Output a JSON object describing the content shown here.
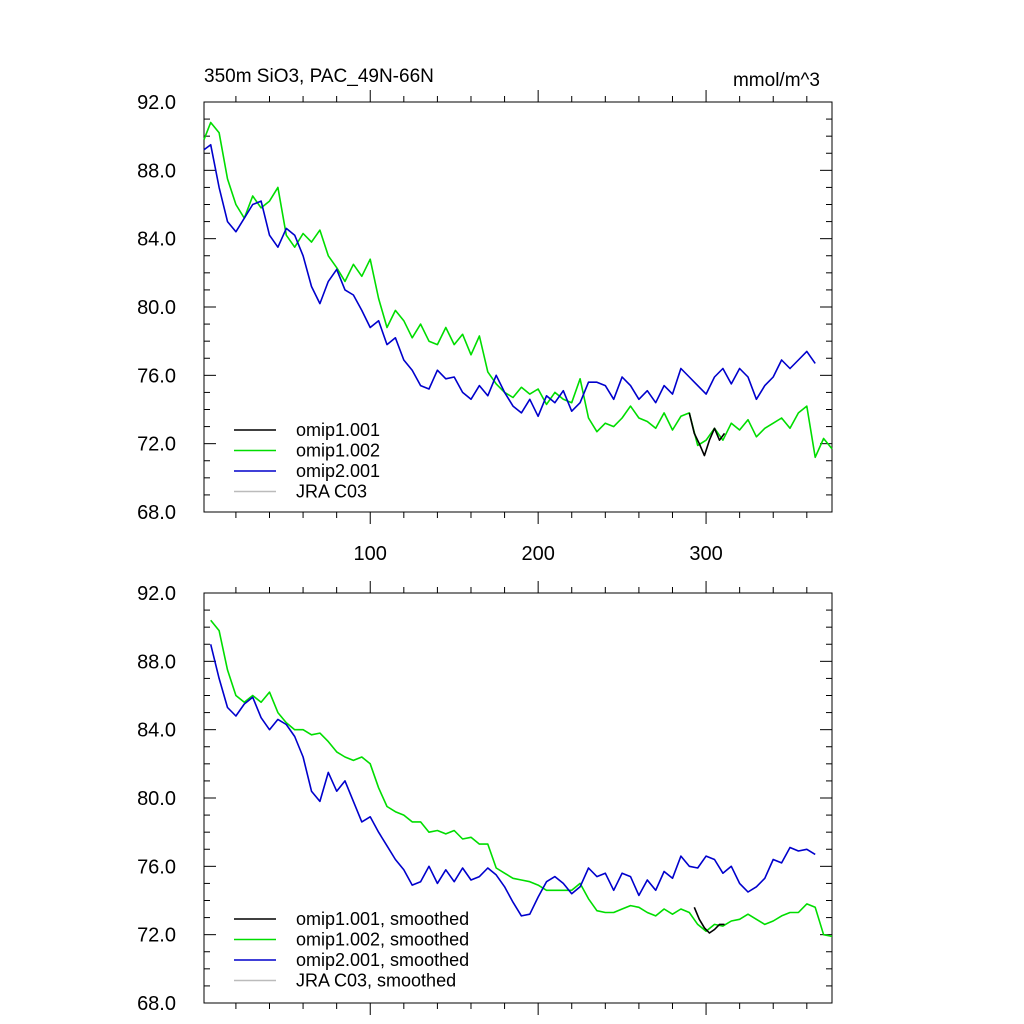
{
  "chart_data": [
    {
      "type": "line",
      "title": "350m SiO3, PAC_49N-66N",
      "units": "mmol/m^3",
      "xlabel": "",
      "ylabel": "",
      "xlim": [
        1,
        375
      ],
      "ylim": [
        68,
        92
      ],
      "ytick_labels": [
        "68.0",
        "72.0",
        "76.0",
        "80.0",
        "84.0",
        "88.0",
        "92.0"
      ],
      "xtick_labels": [
        "100",
        "200",
        "300"
      ],
      "legend": [
        "omip1.001",
        "omip1.002",
        "omip2.001",
        "JRA C03"
      ],
      "legend_position": "bottom-left",
      "smoothed": false,
      "series": [
        {
          "name": "omip1.002",
          "color": "#00dd00",
          "x": [
            1,
            5,
            10,
            15,
            20,
            25,
            30,
            35,
            40,
            45,
            50,
            55,
            60,
            65,
            70,
            75,
            80,
            85,
            90,
            95,
            100,
            105,
            110,
            115,
            120,
            125,
            130,
            135,
            140,
            145,
            150,
            155,
            160,
            165,
            170,
            175,
            180,
            185,
            190,
            195,
            200,
            205,
            210,
            215,
            220,
            225,
            230,
            235,
            240,
            245,
            250,
            255,
            260,
            265,
            270,
            275,
            280,
            285,
            290,
            295,
            300,
            305,
            310,
            315,
            320,
            325,
            330,
            335,
            340,
            345,
            350,
            355,
            360,
            365,
            370,
            375
          ],
          "y": [
            89.8,
            90.8,
            90.2,
            87.5,
            86.0,
            85.2,
            86.5,
            85.8,
            86.2,
            87.0,
            84.2,
            83.5,
            84.3,
            83.8,
            84.5,
            83.0,
            82.3,
            81.5,
            82.5,
            81.8,
            82.8,
            80.5,
            78.8,
            79.8,
            79.2,
            78.2,
            79.0,
            78.0,
            77.8,
            78.8,
            77.8,
            78.4,
            77.2,
            78.3,
            76.2,
            75.5,
            75.0,
            74.7,
            75.3,
            74.9,
            75.2,
            74.3,
            75.0,
            74.6,
            74.4,
            75.8,
            73.5,
            72.7,
            73.2,
            73.0,
            73.5,
            74.2,
            73.5,
            73.3,
            72.9,
            73.8,
            72.8,
            73.6,
            73.8,
            71.9,
            72.2,
            72.9,
            72.2,
            73.2,
            72.8,
            73.4,
            72.4,
            72.9,
            73.2,
            73.5,
            72.9,
            73.8,
            74.2,
            71.2,
            72.3,
            71.7
          ]
        },
        {
          "name": "omip1.001",
          "color": "#000000",
          "x": [
            290,
            293,
            296,
            299,
            302,
            305,
            308,
            311
          ],
          "y": [
            73.8,
            72.6,
            72.0,
            71.3,
            72.2,
            72.9,
            72.2,
            72.6
          ]
        },
        {
          "name": "omip2.001",
          "color": "#0000cc",
          "x": [
            1,
            5,
            10,
            15,
            20,
            25,
            30,
            35,
            40,
            45,
            50,
            55,
            60,
            65,
            70,
            75,
            80,
            85,
            90,
            95,
            100,
            105,
            110,
            115,
            120,
            125,
            130,
            135,
            140,
            145,
            150,
            155,
            160,
            165,
            170,
            175,
            180,
            185,
            190,
            195,
            200,
            205,
            210,
            215,
            220,
            225,
            230,
            235,
            240,
            245,
            250,
            255,
            260,
            265,
            270,
            275,
            280,
            285,
            290,
            295,
            300,
            305,
            310,
            315,
            320,
            325,
            330,
            335,
            340,
            345,
            350,
            355,
            360,
            365
          ],
          "y": [
            89.2,
            89.5,
            87.0,
            85.0,
            84.4,
            85.2,
            86.0,
            86.2,
            84.2,
            83.5,
            84.6,
            84.2,
            83.0,
            81.2,
            80.2,
            81.5,
            82.2,
            81.0,
            80.7,
            79.8,
            78.8,
            79.2,
            77.8,
            78.2,
            76.9,
            76.3,
            75.4,
            75.2,
            76.3,
            75.8,
            75.9,
            75.0,
            74.6,
            75.4,
            74.8,
            76.0,
            75.0,
            74.2,
            73.8,
            74.6,
            73.6,
            74.8,
            74.4,
            75.1,
            73.9,
            74.4,
            75.6,
            75.6,
            75.4,
            74.6,
            75.9,
            75.4,
            74.6,
            75.1,
            74.4,
            75.4,
            74.9,
            76.4,
            75.9,
            75.4,
            74.9,
            75.9,
            76.4,
            75.5,
            76.4,
            75.9,
            74.6,
            75.4,
            75.9,
            76.9,
            76.4,
            76.9,
            77.4,
            76.7
          ]
        }
      ]
    },
    {
      "type": "line",
      "title": "",
      "units": "",
      "xlabel": "",
      "ylabel": "",
      "xlim": [
        1,
        375
      ],
      "ylim": [
        68,
        92
      ],
      "ytick_labels": [
        "68.0",
        "72.0",
        "76.0",
        "80.0",
        "84.0",
        "88.0",
        "92.0"
      ],
      "xtick_labels": [],
      "legend": [
        "omip1.001, smoothed",
        "omip1.002, smoothed",
        "omip2.001, smoothed",
        "JRA C03, smoothed"
      ],
      "legend_position": "bottom-left",
      "smoothed": true,
      "series": [
        {
          "name": "omip1.002, smoothed",
          "color": "#00dd00",
          "x": [
            5,
            10,
            15,
            20,
            25,
            30,
            35,
            40,
            45,
            50,
            55,
            60,
            65,
            70,
            75,
            80,
            85,
            90,
            95,
            100,
            105,
            110,
            115,
            120,
            125,
            130,
            135,
            140,
            145,
            150,
            155,
            160,
            165,
            170,
            175,
            180,
            185,
            190,
            195,
            200,
            205,
            210,
            215,
            220,
            225,
            230,
            235,
            240,
            245,
            250,
            255,
            260,
            265,
            270,
            275,
            280,
            285,
            290,
            295,
            300,
            305,
            310,
            315,
            320,
            325,
            330,
            335,
            340,
            345,
            350,
            355,
            360,
            365,
            370,
            375
          ],
          "y": [
            90.4,
            89.8,
            87.5,
            86.0,
            85.6,
            86.0,
            85.6,
            86.2,
            85.0,
            84.4,
            84.0,
            84.0,
            83.7,
            83.8,
            83.3,
            82.7,
            82.4,
            82.2,
            82.4,
            82.0,
            80.6,
            79.5,
            79.2,
            79.0,
            78.6,
            78.6,
            78.0,
            78.1,
            77.9,
            78.1,
            77.6,
            77.7,
            77.3,
            77.3,
            75.9,
            75.6,
            75.3,
            75.2,
            75.1,
            74.9,
            74.6,
            74.6,
            74.6,
            74.6,
            75.0,
            74.1,
            73.4,
            73.3,
            73.3,
            73.5,
            73.7,
            73.6,
            73.3,
            73.1,
            73.5,
            73.2,
            73.5,
            73.3,
            72.6,
            72.2,
            72.6,
            72.5,
            72.8,
            72.9,
            73.2,
            72.9,
            72.6,
            72.8,
            73.1,
            73.3,
            73.3,
            73.8,
            73.6,
            72.0,
            71.9
          ]
        },
        {
          "name": "omip1.001, smoothed",
          "color": "#000000",
          "x": [
            293,
            296,
            299,
            302,
            305,
            308,
            311
          ],
          "y": [
            73.6,
            72.9,
            72.4,
            72.1,
            72.3,
            72.6,
            72.6
          ]
        },
        {
          "name": "omip2.001, smoothed",
          "color": "#0000cc",
          "x": [
            5,
            10,
            15,
            20,
            25,
            30,
            35,
            40,
            45,
            50,
            55,
            60,
            65,
            70,
            75,
            80,
            85,
            90,
            95,
            100,
            105,
            110,
            115,
            120,
            125,
            130,
            135,
            140,
            145,
            150,
            155,
            160,
            165,
            170,
            175,
            180,
            185,
            190,
            195,
            200,
            205,
            210,
            215,
            220,
            225,
            230,
            235,
            240,
            245,
            250,
            255,
            260,
            265,
            270,
            275,
            280,
            285,
            290,
            295,
            300,
            305,
            310,
            315,
            320,
            325,
            330,
            335,
            340,
            345,
            350,
            355,
            360,
            365
          ],
          "y": [
            89.0,
            87.0,
            85.3,
            84.8,
            85.5,
            85.9,
            84.7,
            84.0,
            84.6,
            84.3,
            83.6,
            82.4,
            80.4,
            79.8,
            81.5,
            80.4,
            81.0,
            79.8,
            78.6,
            78.9,
            78.0,
            77.2,
            76.4,
            75.8,
            74.9,
            75.1,
            76.0,
            75.0,
            75.8,
            75.1,
            75.9,
            75.2,
            75.4,
            75.9,
            75.5,
            74.8,
            73.9,
            73.1,
            73.2,
            74.2,
            75.1,
            75.4,
            75.0,
            74.4,
            74.8,
            75.9,
            75.4,
            75.6,
            74.6,
            75.6,
            75.4,
            74.3,
            75.2,
            74.6,
            75.7,
            75.3,
            76.6,
            76.0,
            75.9,
            76.6,
            76.4,
            75.6,
            76.0,
            75.0,
            74.5,
            74.8,
            75.3,
            76.4,
            76.2,
            77.1,
            76.9,
            77.0,
            76.7
          ]
        }
      ]
    }
  ]
}
